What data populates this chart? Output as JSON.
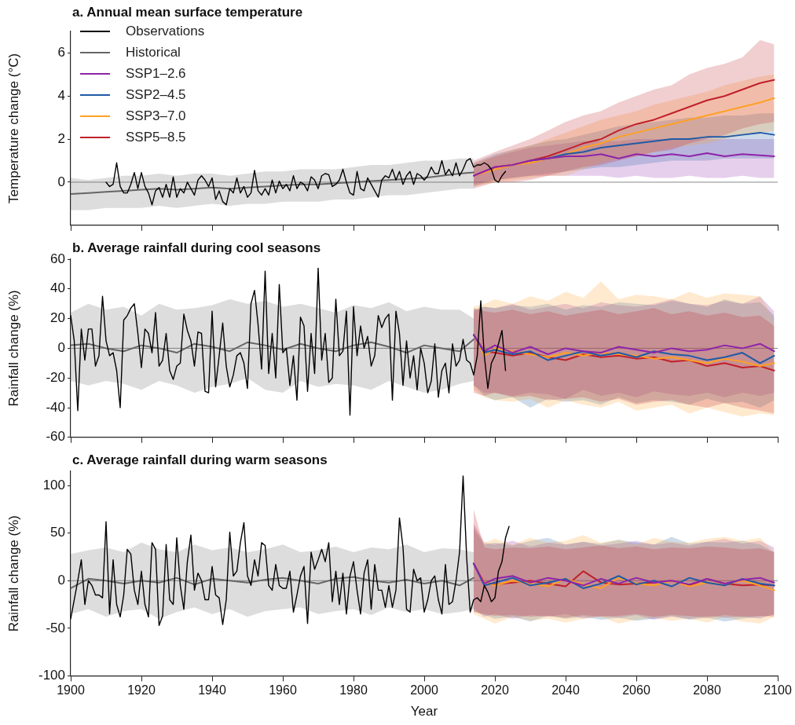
{
  "chart_data": [
    {
      "type": "line",
      "title": "a. Annual mean surface temperature",
      "ylabel": "Temperature change (°C)",
      "xlim": [
        1900,
        2100
      ],
      "xticks": [
        1900,
        1920,
        1940,
        1960,
        1980,
        2000,
        2020,
        2040,
        2060,
        2080,
        2100
      ],
      "ylim": [
        -2,
        7
      ],
      "yticks": [
        0,
        2,
        4,
        6
      ],
      "tick_labels": "y",
      "legend": "top left",
      "ref_lines": [
        {
          "axis": "y",
          "value": 0,
          "color": "#888888"
        }
      ],
      "series": [
        {
          "name": "Observations",
          "color": "#000000",
          "x": [
            1910,
            1911,
            1912,
            1913,
            1914,
            1915,
            1916,
            1917,
            1918,
            1919,
            1920,
            1921,
            1922,
            1923,
            1924,
            1925,
            1926,
            1927,
            1928,
            1929,
            1930,
            1931,
            1932,
            1933,
            1934,
            1935,
            1936,
            1937,
            1938,
            1939,
            1940,
            1941,
            1942,
            1943,
            1944,
            1945,
            1946,
            1947,
            1948,
            1949,
            1950,
            1951,
            1952,
            1953,
            1954,
            1955,
            1956,
            1957,
            1958,
            1959,
            1960,
            1961,
            1962,
            1963,
            1964,
            1965,
            1966,
            1967,
            1968,
            1969,
            1970,
            1971,
            1972,
            1973,
            1974,
            1975,
            1976,
            1977,
            1978,
            1979,
            1980,
            1981,
            1982,
            1983,
            1984,
            1985,
            1986,
            1987,
            1988,
            1989,
            1990,
            1991,
            1992,
            1993,
            1994,
            1995,
            1996,
            1997,
            1998,
            1999,
            2000,
            2001,
            2002,
            2003,
            2004,
            2005,
            2006,
            2007,
            2008,
            2009,
            2010,
            2011,
            2012,
            2013,
            2014,
            2015,
            2016,
            2017,
            2018,
            2019,
            2020,
            2021,
            2022,
            2023
          ],
          "values": [
            0,
            -0.2,
            -0.1,
            0.9,
            -0.2,
            -0.5,
            -0.5,
            -0.1,
            0.45,
            -0.3,
            0.45,
            -0.2,
            -0.5,
            -1.05,
            -0.4,
            -0.25,
            -0.7,
            -0.1,
            -0.7,
            0.25,
            -0.7,
            -0.3,
            -0.5,
            0,
            -0.3,
            -0.6,
            0.1,
            0.3,
            0.1,
            -0.2,
            0.2,
            -0.8,
            -0.4,
            -0.9,
            -1.05,
            -0.3,
            -0.5,
            0.2,
            -0.5,
            -0.2,
            -0.7,
            -0.5,
            0.55,
            -0.4,
            -0.6,
            -0.3,
            -0.6,
            0.1,
            -0.5,
            0.05,
            -0.3,
            -0.1,
            -0.4,
            0.3,
            -0.3,
            0,
            -0.1,
            -0.4,
            0.25,
            0.1,
            -0.3,
            0.3,
            0.4,
            0.35,
            -0.2,
            -0.1,
            0.1,
            0.6,
            0,
            -0.5,
            -0.6,
            0.5,
            -0.3,
            -0.4,
            0.2,
            -0.1,
            -0.4,
            -0.7,
            0.1,
            0.3,
            0.2,
            0.6,
            0.1,
            0.5,
            -0.1,
            0.3,
            0.5,
            -0.1,
            0.4,
            0.3,
            0.1,
            0.3,
            0.7,
            0.4,
            0.4,
            1.0,
            0.35,
            0.6,
            0.3,
            0.9,
            0.3,
            0.6,
            1.0,
            1.1,
            0.7,
            0.8,
            0.8,
            0.9,
            0.8,
            0.6,
            0.1,
            0,
            0.3,
            0.5
          ]
        },
        {
          "name": "Historical",
          "color": "#666666",
          "x": [
            1900,
            1905,
            1910,
            1915,
            1920,
            1925,
            1930,
            1935,
            1940,
            1945,
            1950,
            1955,
            1960,
            1965,
            1970,
            1975,
            1980,
            1985,
            1990,
            1995,
            2000,
            2005,
            2010,
            2014
          ],
          "values": [
            -0.55,
            -0.5,
            -0.45,
            -0.4,
            -0.35,
            -0.3,
            -0.35,
            -0.3,
            -0.25,
            -0.3,
            -0.25,
            -0.2,
            -0.15,
            -0.1,
            -0.1,
            -0.05,
            0,
            0.05,
            0.1,
            0.15,
            0.2,
            0.3,
            0.4,
            0.45
          ],
          "lower": [
            -1.3,
            -1.3,
            -1.2,
            -1.2,
            -1.2,
            -1.1,
            -1.2,
            -1.1,
            -1.0,
            -1.1,
            -1.0,
            -1.0,
            -0.9,
            -0.9,
            -0.9,
            -0.8,
            -0.8,
            -0.7,
            -0.6,
            -0.6,
            -0.5,
            -0.4,
            -0.3,
            -0.3
          ],
          "upper": [
            0.2,
            0.1,
            0.2,
            0.3,
            0.3,
            0.4,
            0.3,
            0.4,
            0.4,
            0.3,
            0.4,
            0.5,
            0.5,
            0.6,
            0.6,
            0.6,
            0.7,
            0.8,
            0.8,
            0.9,
            1.0,
            1.0,
            1.1,
            1.1
          ]
        },
        {
          "name": "SSP1–2.6",
          "color": "#8e24aa",
          "x": [
            2014,
            2020,
            2025,
            2030,
            2035,
            2040,
            2045,
            2050,
            2055,
            2060,
            2065,
            2070,
            2075,
            2080,
            2085,
            2090,
            2095,
            2099
          ],
          "values": [
            0.3,
            0.7,
            0.8,
            1.0,
            1.1,
            1.2,
            1.2,
            1.3,
            1.1,
            1.3,
            1.2,
            1.3,
            1.2,
            1.35,
            1.2,
            1.3,
            1.25,
            1.2
          ],
          "lower": [
            -0.1,
            0.1,
            0.2,
            0.3,
            0.3,
            0.3,
            0.3,
            0.3,
            0.2,
            0.3,
            0.2,
            0.2,
            0.3,
            0.2,
            0.2,
            0.3,
            0.2,
            0.2
          ],
          "upper": [
            0.8,
            1.2,
            1.4,
            1.6,
            1.7,
            1.8,
            1.9,
            1.9,
            1.9,
            2.0,
            2.0,
            2.0,
            2.0,
            2.0,
            2.0,
            2.0,
            2.0,
            2.0
          ]
        },
        {
          "name": "SSP2–4.5",
          "color": "#1f5aa6",
          "x": [
            2014,
            2020,
            2025,
            2030,
            2035,
            2040,
            2045,
            2050,
            2055,
            2060,
            2065,
            2070,
            2075,
            2080,
            2085,
            2090,
            2095,
            2099
          ],
          "values": [
            null,
            null,
            null,
            1.0,
            1.1,
            1.3,
            1.4,
            1.6,
            1.7,
            1.8,
            1.9,
            2.0,
            2.0,
            2.1,
            2.1,
            2.2,
            2.3,
            2.2
          ],
          "lower": [
            -0.2,
            0.1,
            0.2,
            0.3,
            0.4,
            0.5,
            0.6,
            0.7,
            0.7,
            0.8,
            0.9,
            1.0,
            1.0,
            1.0,
            1.1,
            1.1,
            1.1,
            1.1
          ],
          "upper": [
            0.9,
            1.3,
            1.5,
            1.7,
            1.9,
            2.0,
            2.2,
            2.4,
            2.6,
            2.7,
            2.8,
            2.9,
            3.0,
            3.0,
            3.1,
            3.1,
            3.2,
            3.2
          ]
        },
        {
          "name": "SSP3–7.0",
          "color": "#ffa024",
          "x": [
            2014,
            2020,
            2025,
            2030,
            2035,
            2040,
            2045,
            2050,
            2055,
            2060,
            2065,
            2070,
            2075,
            2080,
            2085,
            2090,
            2095,
            2099
          ],
          "values": [
            0.3,
            0.6,
            0.8,
            0.9,
            1.1,
            1.3,
            1.6,
            1.8,
            2.1,
            2.3,
            2.5,
            2.7,
            2.9,
            3.1,
            3.3,
            3.5,
            3.7,
            3.9
          ],
          "lower": [
            -0.2,
            0.0,
            0.1,
            0.2,
            0.3,
            0.3,
            0.6,
            0.9,
            1.1,
            1.2,
            1.4,
            1.6,
            1.7,
            1.8,
            2.0,
            2.2,
            2.3,
            2.4
          ],
          "upper": [
            0.9,
            1.2,
            1.5,
            1.7,
            2.0,
            2.3,
            2.6,
            2.9,
            3.1,
            3.3,
            3.6,
            3.8,
            4.0,
            4.2,
            4.5,
            4.7,
            4.9,
            5.0
          ]
        },
        {
          "name": "SSP5–8.5",
          "color": "#c0202a",
          "x": [
            2014,
            2020,
            2025,
            2030,
            2035,
            2040,
            2045,
            2050,
            2055,
            2060,
            2065,
            2070,
            2075,
            2080,
            2085,
            2090,
            2095,
            2099
          ],
          "values": [
            0.3,
            0.7,
            0.8,
            1.0,
            1.2,
            1.5,
            1.8,
            2.0,
            2.4,
            2.7,
            2.9,
            3.2,
            3.5,
            3.8,
            4.0,
            4.3,
            4.6,
            4.75
          ],
          "lower": [
            -0.3,
            0.0,
            0.0,
            0.1,
            0.3,
            0.5,
            0.7,
            0.8,
            1.0,
            1.2,
            1.4,
            1.5,
            1.8,
            2.0,
            2.2,
            2.5,
            2.7,
            2.8
          ],
          "upper": [
            1.0,
            1.4,
            1.7,
            2.0,
            2.4,
            2.8,
            3.1,
            3.3,
            3.7,
            4.0,
            4.3,
            4.5,
            5.0,
            5.3,
            5.5,
            5.8,
            6.6,
            6.4
          ]
        }
      ]
    },
    {
      "type": "line",
      "title": "b. Average rainfall during cool seasons",
      "ylabel": "Rainfall change (%)",
      "xlim": [
        1900,
        2100
      ],
      "xticks": [
        1900,
        1920,
        1940,
        1960,
        1980,
        2000,
        2020,
        2040,
        2060,
        2080,
        2100
      ],
      "ylim": [
        -60,
        60
      ],
      "yticks": [
        -60,
        -40,
        -20,
        0,
        20,
        40,
        60
      ],
      "tick_labels": "y",
      "ref_lines": [
        {
          "axis": "y",
          "value": 0,
          "color": "#888888"
        }
      ],
      "series": [
        {
          "color": "#000000",
          "x": [
            1900,
            1901,
            1902,
            1903,
            1904,
            1905,
            1906,
            1907,
            1908,
            1909,
            1910,
            1911,
            1912,
            1913,
            1914,
            1915,
            1916,
            1917,
            1918,
            1919,
            1920,
            1921,
            1922,
            1923,
            1924,
            1925,
            1926,
            1927,
            1928,
            1929,
            1930,
            1931,
            1932,
            1933,
            1934,
            1935,
            1936,
            1937,
            1938,
            1939,
            1940,
            1941,
            1942,
            1943,
            1944,
            1945,
            1946,
            1947,
            1948,
            1949,
            1950,
            1951,
            1952,
            1953,
            1954,
            1955,
            1956,
            1957,
            1958,
            1959,
            1960,
            1961,
            1962,
            1963,
            1964,
            1965,
            1966,
            1967,
            1968,
            1969,
            1970,
            1971,
            1972,
            1973,
            1974,
            1975,
            1976,
            1977,
            1978,
            1979,
            1980,
            1981,
            1982,
            1983,
            1984,
            1985,
            1986,
            1987,
            1988,
            1989,
            1990,
            1991,
            1992,
            1993,
            1994,
            1995,
            1996,
            1997,
            1998,
            1999,
            2000,
            2001,
            2002,
            2003,
            2004,
            2005,
            2006,
            2007,
            2008,
            2009,
            2010,
            2011,
            2012,
            2013,
            2014,
            2015,
            2016,
            2017,
            2018,
            2019,
            2020,
            2021,
            2022,
            2023
          ],
          "values": [
            22,
            5,
            -42,
            13,
            -8,
            13,
            13,
            -12,
            -5,
            35,
            5,
            -5,
            -3,
            -15,
            -40,
            19,
            22,
            27,
            30,
            10,
            -13,
            13,
            10,
            -3,
            24,
            -12,
            -8,
            10,
            -15,
            -21,
            -12,
            -10,
            23,
            12,
            5,
            -12,
            11,
            10,
            -29,
            -30,
            25,
            -26,
            -5,
            17,
            -12,
            -26,
            -18,
            -5,
            -3,
            -10,
            -27,
            30,
            39,
            16,
            -14,
            52,
            -17,
            10,
            -20,
            43,
            -3,
            0,
            -25,
            -5,
            -35,
            21,
            15,
            -29,
            10,
            -17,
            54,
            -8,
            10,
            -23,
            -20,
            33,
            -5,
            -2,
            25,
            -45,
            28,
            -5,
            15,
            0,
            8,
            -12,
            -5,
            22,
            14,
            20,
            23,
            -35,
            25,
            10,
            -25,
            5,
            -20,
            -5,
            -28,
            0,
            -10,
            -30,
            -22,
            3,
            -33,
            -15,
            -10,
            -30,
            3,
            -12,
            -8,
            6,
            -8,
            -10,
            -18,
            -5,
            32,
            -5,
            -27,
            -10,
            -5,
            3,
            12,
            -15
          ]
        },
        {
          "color": "#666666",
          "x": [
            1900,
            1905,
            1910,
            1915,
            1920,
            1925,
            1930,
            1935,
            1940,
            1945,
            1950,
            1955,
            1960,
            1965,
            1970,
            1975,
            1980,
            1985,
            1990,
            1995,
            2000,
            2005,
            2010,
            2014
          ],
          "values": [
            2,
            3,
            0,
            -2,
            2,
            0,
            -3,
            3,
            1,
            -2,
            4,
            2,
            -1,
            3,
            0,
            -2,
            2,
            4,
            1,
            -3,
            2,
            0,
            -2,
            6
          ],
          "lower": [
            -22,
            -25,
            -22,
            -24,
            -28,
            -22,
            -25,
            -30,
            -26,
            -24,
            -20,
            -28,
            -30,
            -22,
            -26,
            -24,
            -25,
            -28,
            -22,
            -26,
            -30,
            -28,
            -24,
            -22
          ],
          "upper": [
            24,
            30,
            26,
            28,
            22,
            30,
            26,
            27,
            29,
            33,
            30,
            32,
            28,
            30,
            27,
            24,
            29,
            27,
            31,
            25,
            28,
            26,
            26,
            20
          ]
        },
        {
          "color": "#8e24aa",
          "x": [
            2014,
            2017,
            2020,
            2025,
            2030,
            2035,
            2040,
            2045,
            2050,
            2055,
            2060,
            2065,
            2070,
            2075,
            2080,
            2085,
            2090,
            2095,
            2099
          ],
          "values": [
            9,
            -2,
            2,
            -3,
            1,
            -4,
            0,
            -2,
            -3,
            1,
            -1,
            -3,
            0,
            -2,
            -1,
            2,
            0,
            3,
            -2
          ],
          "lower": [
            -25,
            -30,
            -30,
            -32,
            -30,
            -31,
            -34,
            -28,
            -32,
            -30,
            -33,
            -29,
            -31,
            -32,
            -30,
            -33,
            -30,
            -32,
            -30
          ],
          "upper": [
            25,
            28,
            27,
            30,
            26,
            28,
            30,
            27,
            31,
            29,
            28,
            30,
            33,
            30,
            29,
            32,
            30,
            35,
            25
          ]
        },
        {
          "color": "#1f5aa6",
          "x": [
            2014,
            2017,
            2020,
            2025,
            2030,
            2035,
            2040,
            2045,
            2050,
            2055,
            2060,
            2065,
            2070,
            2075,
            2080,
            2085,
            2090,
            2095,
            2099
          ],
          "values": [
            9,
            -3,
            -1,
            -4,
            -2,
            -8,
            -5,
            -2,
            -5,
            -3,
            -6,
            -2,
            -4,
            -5,
            -8,
            -6,
            -3,
            -10,
            -5
          ],
          "lower": [
            -25,
            -32,
            -35,
            -33,
            -40,
            -34,
            -36,
            -35,
            -38,
            -33,
            -37,
            -35,
            -36,
            -38,
            -34,
            -37,
            -36,
            -40,
            -35
          ],
          "upper": [
            26,
            28,
            27,
            29,
            28,
            30,
            26,
            29,
            28,
            31,
            30,
            29,
            32,
            30,
            28,
            33,
            30,
            31,
            22
          ]
        },
        {
          "color": "#ffa024",
          "x": [
            2014,
            2017,
            2020,
            2025,
            2030,
            2035,
            2040,
            2045,
            2050,
            2055,
            2060,
            2065,
            2070,
            2075,
            2080,
            2085,
            2090,
            2095,
            2099
          ],
          "values": [
            9,
            -5,
            0,
            -2,
            -4,
            -6,
            -3,
            -5,
            -3,
            -4,
            -5,
            -7,
            -6,
            -8,
            -10,
            -7,
            -9,
            -12,
            -10
          ],
          "lower": [
            -28,
            -33,
            -35,
            -36,
            -34,
            -40,
            -35,
            -38,
            -40,
            -36,
            -42,
            -40,
            -38,
            -44,
            -40,
            -43,
            -46,
            -44,
            -45
          ],
          "upper": [
            28,
            30,
            33,
            30,
            35,
            32,
            38,
            34,
            45,
            33,
            36,
            35,
            33,
            38,
            34,
            37,
            36,
            35,
            20
          ]
        },
        {
          "color": "#c0202a",
          "x": [
            2014,
            2017,
            2020,
            2025,
            2030,
            2035,
            2040,
            2045,
            2050,
            2055,
            2060,
            2065,
            2070,
            2075,
            2080,
            2085,
            2090,
            2095,
            2099
          ],
          "values": [
            9,
            -2,
            -3,
            -5,
            -3,
            -6,
            -8,
            -4,
            -6,
            -5,
            -7,
            -6,
            -9,
            -8,
            -12,
            -10,
            -13,
            -12,
            -15
          ],
          "lower": [
            -30,
            -32,
            -30,
            -33,
            -32,
            -35,
            -34,
            -33,
            -36,
            -34,
            -38,
            -36,
            -35,
            -38,
            -40,
            -37,
            -40,
            -42,
            -44
          ],
          "upper": [
            27,
            25,
            24,
            26,
            23,
            25,
            22,
            24,
            26,
            23,
            25,
            27,
            23,
            25,
            22,
            24,
            21,
            22,
            15
          ]
        }
      ]
    },
    {
      "type": "line",
      "title": "c. Average rainfall during warm seasons",
      "xlabel": "Year",
      "ylabel": "Rainfall change (%)",
      "xlim": [
        1900,
        2100
      ],
      "xticks": [
        1900,
        1920,
        1940,
        1960,
        1980,
        2000,
        2020,
        2040,
        2060,
        2080,
        2100
      ],
      "ylim": [
        -100,
        115
      ],
      "yticks": [
        -100,
        -50,
        0,
        50,
        100
      ],
      "ref_lines": [
        {
          "axis": "y",
          "value": 0,
          "color": "#888888"
        }
      ],
      "series": [
        {
          "color": "#000000",
          "x": [
            1900,
            1901,
            1902,
            1903,
            1904,
            1905,
            1906,
            1907,
            1908,
            1909,
            1910,
            1911,
            1912,
            1913,
            1914,
            1915,
            1916,
            1917,
            1918,
            1919,
            1920,
            1921,
            1922,
            1923,
            1924,
            1925,
            1926,
            1927,
            1928,
            1929,
            1930,
            1931,
            1932,
            1933,
            1934,
            1935,
            1936,
            1937,
            1938,
            1939,
            1940,
            1941,
            1942,
            1943,
            1944,
            1945,
            1946,
            1947,
            1948,
            1949,
            1950,
            1951,
            1952,
            1953,
            1954,
            1955,
            1956,
            1957,
            1958,
            1959,
            1960,
            1961,
            1962,
            1963,
            1964,
            1965,
            1966,
            1967,
            1968,
            1969,
            1970,
            1971,
            1972,
            1973,
            1974,
            1975,
            1976,
            1977,
            1978,
            1979,
            1980,
            1981,
            1982,
            1983,
            1984,
            1985,
            1986,
            1987,
            1988,
            1989,
            1990,
            1991,
            1992,
            1993,
            1994,
            1995,
            1996,
            1997,
            1998,
            1999,
            2000,
            2001,
            2002,
            2003,
            2004,
            2005,
            2006,
            2007,
            2008,
            2009,
            2010,
            2011,
            2012,
            2013,
            2014,
            2015,
            2016,
            2017,
            2018,
            2019,
            2020,
            2021,
            2022,
            2023,
            2024
          ],
          "values": [
            -40,
            -20,
            0,
            22,
            -25,
            0,
            -5,
            -15,
            -15,
            -18,
            62,
            -35,
            22,
            -25,
            -38,
            -15,
            33,
            28,
            -10,
            -25,
            10,
            -25,
            -38,
            40,
            33,
            -47,
            -37,
            38,
            -20,
            -25,
            45,
            -5,
            -30,
            20,
            48,
            -10,
            8,
            0,
            -20,
            -20,
            15,
            -15,
            -18,
            -46,
            -20,
            51,
            5,
            10,
            40,
            61,
            5,
            -5,
            22,
            5,
            40,
            37,
            -5,
            -10,
            17,
            -5,
            -8,
            -8,
            10,
            -33,
            -15,
            5,
            15,
            -45,
            30,
            12,
            22,
            33,
            20,
            40,
            -22,
            10,
            -25,
            8,
            -35,
            5,
            20,
            -10,
            -35,
            8,
            22,
            -30,
            17,
            -10,
            -10,
            -28,
            -5,
            -28,
            -10,
            66,
            35,
            -30,
            -33,
            12,
            0,
            3,
            -33,
            -20,
            0,
            5,
            -20,
            -35,
            17,
            -25,
            -22,
            0,
            30,
            110,
            25,
            -33,
            -20,
            -18,
            -22,
            -5,
            -12,
            -22,
            -18,
            10,
            20,
            45,
            57
          ]
        },
        {
          "color": "#666666",
          "x": [
            1900,
            1905,
            1910,
            1915,
            1920,
            1925,
            1930,
            1935,
            1940,
            1945,
            1950,
            1955,
            1960,
            1965,
            1970,
            1975,
            1980,
            1985,
            1990,
            1995,
            2000,
            2005,
            2010,
            2014
          ],
          "values": [
            -8,
            2,
            0,
            -3,
            0,
            -2,
            3,
            -4,
            2,
            0,
            -2,
            1,
            3,
            0,
            -3,
            2,
            4,
            0,
            -2,
            1,
            -3,
            0,
            -5,
            3
          ],
          "lower": [
            -35,
            -30,
            -38,
            -32,
            -30,
            -40,
            -33,
            -28,
            -35,
            -30,
            -38,
            -32,
            -30,
            -28,
            -35,
            -32,
            -30,
            -36,
            -28,
            -33,
            -30,
            -35,
            -33,
            -30
          ],
          "upper": [
            28,
            32,
            35,
            30,
            40,
            33,
            30,
            38,
            32,
            35,
            30,
            33,
            38,
            30,
            32,
            36,
            30,
            35,
            33,
            38,
            30,
            34,
            33,
            30
          ]
        },
        {
          "color": "#8e24aa",
          "x": [
            2014,
            2017,
            2020,
            2025,
            2030,
            2035,
            2040,
            2045,
            2050,
            2055,
            2060,
            2065,
            2070,
            2075,
            2080,
            2085,
            2090,
            2095,
            2099
          ],
          "values": [
            18,
            -3,
            2,
            5,
            -2,
            3,
            0,
            -5,
            2,
            -3,
            3,
            -2,
            0,
            -4,
            2,
            -3,
            1,
            3,
            -2
          ],
          "lower": [
            -30,
            -38,
            -35,
            -40,
            -36,
            -38,
            -35,
            -40,
            -37,
            -39,
            -36,
            -41,
            -38,
            -40,
            -37,
            -39,
            -38,
            -40,
            -35
          ],
          "upper": [
            60,
            40,
            38,
            42,
            36,
            40,
            38,
            41,
            37,
            39,
            42,
            38,
            40,
            37,
            41,
            44,
            39,
            42,
            35
          ]
        },
        {
          "color": "#1f5aa6",
          "x": [
            2014,
            2017,
            2020,
            2025,
            2030,
            2035,
            2040,
            2045,
            2050,
            2055,
            2060,
            2065,
            2070,
            2075,
            2080,
            2085,
            2090,
            2095,
            2099
          ],
          "values": [
            18,
            -5,
            -2,
            3,
            -5,
            -2,
            2,
            -8,
            -3,
            5,
            -4,
            0,
            -6,
            3,
            -2,
            -5,
            2,
            -3,
            -5
          ],
          "lower": [
            -32,
            -36,
            -40,
            -38,
            -43,
            -37,
            -40,
            -38,
            -41,
            -39,
            -42,
            -40,
            -37,
            -41,
            -39,
            -43,
            -40,
            -38,
            -36
          ],
          "upper": [
            55,
            38,
            40,
            37,
            42,
            45,
            38,
            41,
            39,
            43,
            40,
            38,
            46,
            39,
            41,
            40,
            42,
            38,
            30
          ]
        },
        {
          "color": "#ffa024",
          "x": [
            2014,
            2017,
            2020,
            2025,
            2030,
            2035,
            2040,
            2045,
            2050,
            2055,
            2060,
            2065,
            2070,
            2075,
            2080,
            2085,
            2090,
            2095,
            2099
          ],
          "values": [
            18,
            -2,
            -5,
            0,
            -3,
            -6,
            2,
            -4,
            -8,
            3,
            -3,
            -5,
            0,
            -6,
            -2,
            -4,
            0,
            -5,
            -10
          ],
          "lower": [
            -35,
            -40,
            -45,
            -38,
            -42,
            -40,
            -44,
            -40,
            -38,
            -45,
            -41,
            -39,
            -42,
            -40,
            -44,
            -38,
            -43,
            -45,
            -38
          ],
          "upper": [
            58,
            40,
            44,
            38,
            45,
            40,
            42,
            48,
            40,
            43,
            38,
            45,
            41,
            40,
            44,
            46,
            42,
            45,
            30
          ]
        },
        {
          "color": "#c0202a",
          "x": [
            2014,
            2017,
            2020,
            2025,
            2030,
            2035,
            2040,
            2045,
            2050,
            2055,
            2060,
            2065,
            2070,
            2075,
            2080,
            2085,
            2090,
            2095,
            2099
          ],
          "values": [
            18,
            -2,
            -4,
            -2,
            0,
            -3,
            -6,
            10,
            -2,
            -4,
            -3,
            -2,
            0,
            -5,
            2,
            -3,
            -5,
            -4,
            -5
          ],
          "lower": [
            -33,
            -35,
            -37,
            -36,
            -38,
            -37,
            -39,
            -36,
            -38,
            -37,
            -35,
            -38,
            -36,
            -37,
            -39,
            -36,
            -38,
            -37,
            -38
          ],
          "upper": [
            75,
            35,
            33,
            35,
            34,
            36,
            33,
            35,
            37,
            34,
            36,
            33,
            35,
            34,
            36,
            35,
            33,
            34,
            30
          ]
        }
      ]
    }
  ]
}
